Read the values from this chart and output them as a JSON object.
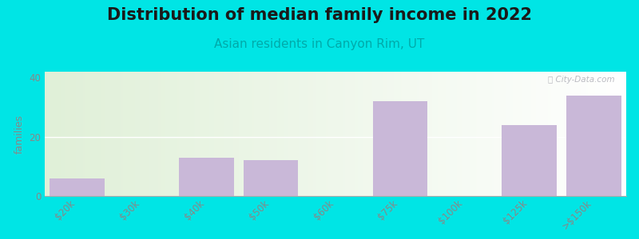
{
  "title": "Distribution of median family income in 2022",
  "subtitle": "Asian residents in Canyon Rim, UT",
  "ylabel": "families",
  "categories": [
    "$20k",
    "$30k",
    "$40k",
    "$50k",
    "$60k",
    "$75k",
    "$100k",
    "$125k",
    ">$150k"
  ],
  "values": [
    6,
    0,
    13,
    12,
    0,
    32,
    0,
    24,
    34
  ],
  "bar_color": "#c9b8d8",
  "ylim": [
    0,
    42
  ],
  "yticks": [
    0,
    20,
    40
  ],
  "background_outer": "#00e5e5",
  "background_plot_left": "#e0f0d8",
  "background_plot_right": "#ffffff",
  "title_fontsize": 15,
  "subtitle_fontsize": 11,
  "subtitle_color": "#00aaaa",
  "watermark": "⌖ City-Data.com",
  "grid_color": "#ffffff",
  "axis_color": "#aaaaaa",
  "tick_label_color": "#888888",
  "ylabel_color": "#888888",
  "bar_width": 0.85
}
